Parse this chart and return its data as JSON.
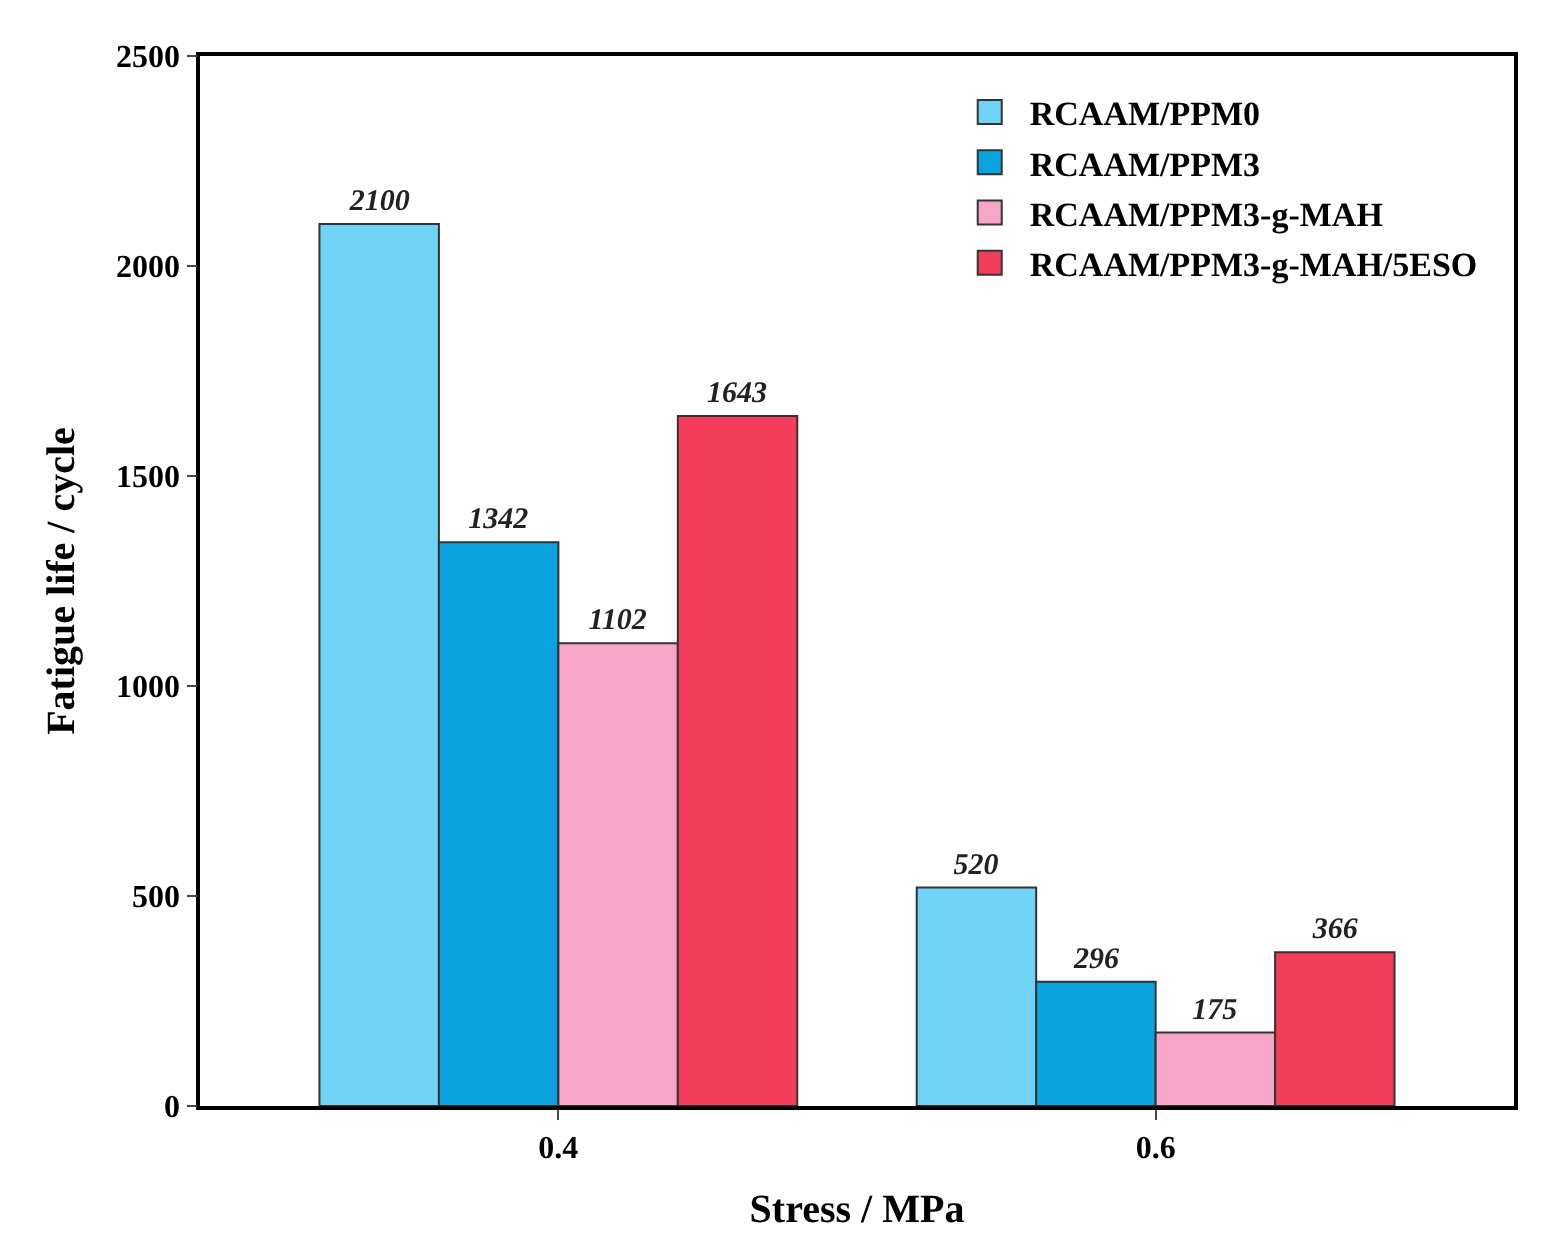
{
  "chart_data": {
    "type": "bar",
    "xlabel": "Stress / MPa",
    "ylabel": "Fatigue life / cycle",
    "categories": [
      "0.4",
      "0.6"
    ],
    "series": [
      {
        "name": "RCAAM/PPM0",
        "color": "#6fd3f6",
        "values": [
          2100,
          520
        ]
      },
      {
        "name": "RCAAM/PPM3",
        "color": "#0aa3e0",
        "values": [
          1342,
          296
        ]
      },
      {
        "name": "RCAAM/PPM3-g-MAH",
        "color": "#f8a6c8",
        "values": [
          1102,
          175
        ]
      },
      {
        "name": "RCAAM/PPM3-g-MAH/5ESO",
        "color": "#f43d5a",
        "values": [
          1643,
          366
        ]
      }
    ],
    "ylim": [
      0,
      2500
    ],
    "yticks": [
      0,
      500,
      1000,
      1500,
      2000,
      2500
    ],
    "data_labels": true,
    "legend": "top right"
  }
}
